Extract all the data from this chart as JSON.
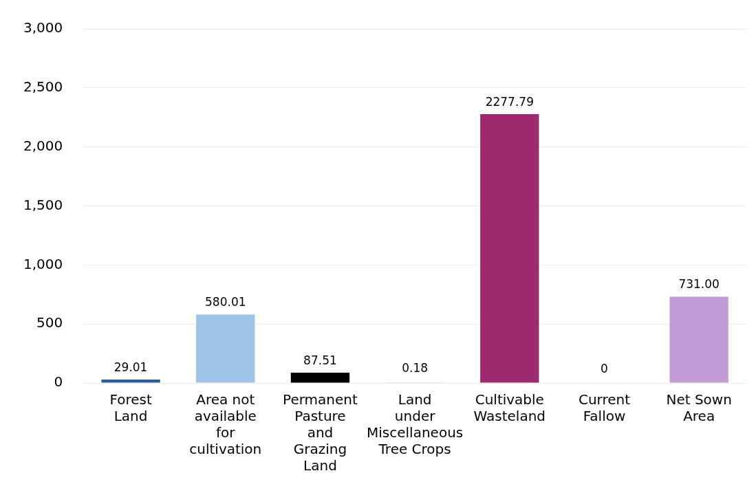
{
  "chart_data": {
    "type": "bar",
    "categories": [
      "Forest Land",
      "Area not available for cultivation",
      "Permanent Pasture and Grazing Land",
      "Land under Miscellaneous Tree Crops",
      "Cultivable Wasteland",
      "Current Fallow",
      "Net Sown Area"
    ],
    "values": [
      29.01,
      580.01,
      87.51,
      0.18,
      2277.79,
      0,
      731.0
    ],
    "value_labels": [
      "29.01",
      "580.01",
      "87.51",
      "0.18",
      "2277.79",
      "0",
      "731.00"
    ],
    "colors": [
      "#2e5e99",
      "#9dc3e6",
      "#000000",
      "#d9d9d9",
      "#9d2a6e",
      "#e27bc8",
      "#c19bd3"
    ],
    "ylim": [
      0,
      3000
    ],
    "yticks": [
      0,
      {
        "value": 500,
        "label": "500"
      },
      {
        "value": 1000,
        "label": "1,000"
      },
      {
        "value": 1500,
        "label": "1,500"
      },
      {
        "value": 2000,
        "label": "2,000"
      },
      {
        "value": 2500,
        "label": "2,500"
      },
      {
        "value": 3000,
        "label": "3,000"
      }
    ],
    "grid": "y",
    "legend": false
  }
}
